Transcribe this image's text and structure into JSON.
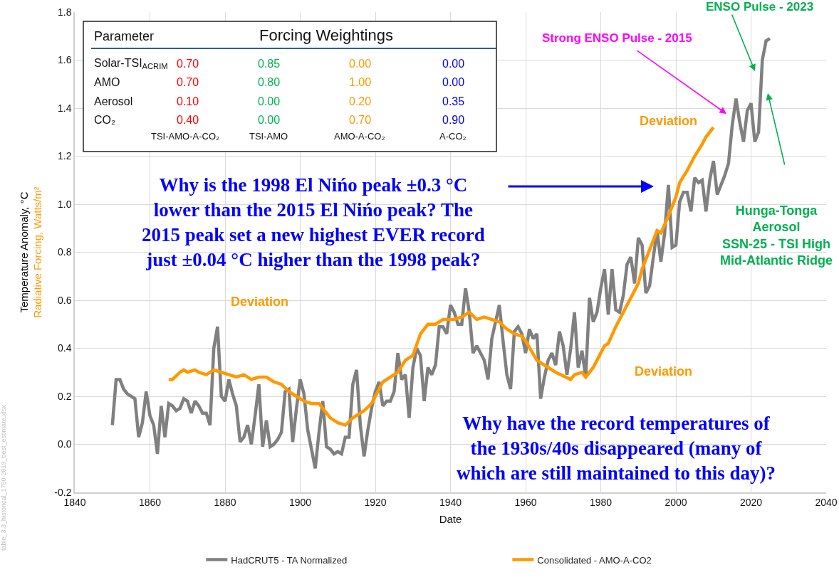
{
  "chart_data": {
    "type": "line",
    "xlabel": "Date",
    "ylabel": "Temperature Anomaly, °C\nRadiative Forcing, Watts/m²",
    "xlim": [
      1840,
      2040
    ],
    "xticks": [
      1840,
      1860,
      1880,
      1900,
      1920,
      1940,
      1960,
      1980,
      2000,
      2020,
      2040
    ],
    "ylim": [
      -0.2,
      1.8
    ],
    "yticks": [
      -0.2,
      {
        "value": 0,
        "label": "0.0"
      },
      0.2,
      0.4,
      0.6,
      0.8,
      {
        "value": 1,
        "label": "1.0"
      },
      1.2,
      1.4,
      1.6,
      1.8
    ],
    "grid": true,
    "legend": "bottom",
    "marker": "none",
    "line_style": "solid",
    "series": [
      {
        "name": "HadCRUT5 - TA Normalized",
        "color": "#808080",
        "x": [
          1850,
          1851,
          1852,
          1853,
          1854,
          1855,
          1856,
          1857,
          1858,
          1859,
          1860,
          1861,
          1862,
          1863,
          1864,
          1865,
          1866,
          1867,
          1868,
          1869,
          1870,
          1871,
          1872,
          1873,
          1874,
          1875,
          1876,
          1877,
          1878,
          1879,
          1880,
          1881,
          1882,
          1883,
          1884,
          1885,
          1886,
          1887,
          1888,
          1889,
          1890,
          1891,
          1892,
          1893,
          1894,
          1895,
          1896,
          1897,
          1898,
          1899,
          1900,
          1901,
          1902,
          1903,
          1904,
          1905,
          1906,
          1907,
          1908,
          1909,
          1910,
          1911,
          1912,
          1913,
          1914,
          1915,
          1916,
          1917,
          1918,
          1919,
          1920,
          1921,
          1922,
          1923,
          1924,
          1925,
          1926,
          1927,
          1928,
          1929,
          1930,
          1931,
          1932,
          1933,
          1934,
          1935,
          1936,
          1937,
          1938,
          1939,
          1940,
          1941,
          1942,
          1943,
          1944,
          1945,
          1946,
          1947,
          1948,
          1949,
          1950,
          1951,
          1952,
          1953,
          1954,
          1955,
          1956,
          1957,
          1958,
          1959,
          1960,
          1961,
          1962,
          1963,
          1964,
          1965,
          1966,
          1967,
          1968,
          1969,
          1970,
          1971,
          1972,
          1973,
          1974,
          1975,
          1976,
          1977,
          1978,
          1979,
          1980,
          1981,
          1982,
          1983,
          1984,
          1985,
          1986,
          1987,
          1988,
          1989,
          1990,
          1991,
          1992,
          1993,
          1994,
          1995,
          1996,
          1997,
          1998,
          1999,
          2000,
          2001,
          2002,
          2003,
          2004,
          2005,
          2006,
          2007,
          2008,
          2009,
          2010,
          2011,
          2012,
          2013,
          2014,
          2015,
          2016,
          2017,
          2018,
          2019,
          2020,
          2021,
          2022,
          2023,
          2024,
          2025
        ],
        "values": [
          0.08,
          0.27,
          0.27,
          0.23,
          0.21,
          0.2,
          0.19,
          0.03,
          0.09,
          0.22,
          0.12,
          0.08,
          -0.04,
          0.16,
          0.03,
          0.17,
          0.16,
          0.14,
          0.15,
          0.19,
          0.18,
          0.13,
          0.18,
          0.16,
          0.13,
          0.13,
          0.08,
          0.4,
          0.49,
          0.2,
          0.18,
          0.27,
          0.21,
          0.16,
          0.01,
          0.03,
          0.08,
          0.0,
          0.12,
          0.25,
          -0.01,
          0.1,
          -0.01,
          0.0,
          0.02,
          0.05,
          0.22,
          0.23,
          0.01,
          0.15,
          0.27,
          0.21,
          0.06,
          -0.02,
          -0.1,
          0.05,
          0.18,
          -0.01,
          -0.02,
          -0.04,
          -0.03,
          -0.04,
          0.03,
          0.03,
          0.25,
          0.31,
          0.08,
          -0.05,
          0.06,
          0.15,
          0.22,
          0.26,
          0.16,
          0.18,
          0.18,
          0.22,
          0.38,
          0.27,
          0.29,
          0.11,
          0.32,
          0.4,
          0.37,
          0.18,
          0.32,
          0.29,
          0.33,
          0.49,
          0.49,
          0.46,
          0.58,
          0.55,
          0.5,
          0.5,
          0.65,
          0.55,
          0.38,
          0.41,
          0.38,
          0.35,
          0.27,
          0.44,
          0.51,
          0.58,
          0.43,
          0.29,
          0.23,
          0.47,
          0.49,
          0.46,
          0.38,
          0.48,
          0.44,
          0.46,
          0.19,
          0.28,
          0.35,
          0.38,
          0.33,
          0.47,
          0.41,
          0.29,
          0.4,
          0.55,
          0.32,
          0.39,
          0.28,
          0.61,
          0.51,
          0.55,
          0.65,
          0.73,
          0.54,
          0.73,
          0.56,
          0.55,
          0.62,
          0.75,
          0.78,
          0.67,
          0.86,
          0.83,
          0.63,
          0.66,
          0.78,
          0.89,
          0.76,
          0.88,
          1.08,
          0.82,
          0.83,
          1.01,
          1.05,
          1.05,
          0.97,
          1.11,
          1.09,
          1.1,
          0.97,
          1.1,
          1.18,
          1.04,
          1.08,
          1.12,
          1.17,
          1.33,
          1.44,
          1.34,
          1.26,
          1.39,
          1.42,
          1.26,
          1.3,
          1.6,
          1.68,
          1.69
        ]
      },
      {
        "name": "Consolidated - AMO-A-CO2",
        "color": "#ff9900",
        "x": [
          1865,
          1866,
          1868,
          1869,
          1870,
          1872,
          1873,
          1875,
          1877,
          1879,
          1881,
          1883,
          1885,
          1887,
          1889,
          1891,
          1893,
          1895,
          1897,
          1899,
          1901,
          1903,
          1905,
          1907,
          1908,
          1910,
          1912,
          1914,
          1915,
          1917,
          1919,
          1922,
          1924,
          1926,
          1928,
          1930,
          1932,
          1934,
          1936,
          1938,
          1941,
          1943,
          1945,
          1947,
          1949,
          1951,
          1953,
          1955,
          1957,
          1959,
          1960,
          1963,
          1966,
          1968,
          1972,
          1973,
          1975,
          1976,
          1978,
          1979,
          1981,
          1982,
          1984,
          1987,
          1990,
          1991,
          1993,
          1995,
          1996,
          1998,
          2000,
          2001,
          2003,
          2005,
          2007,
          2008,
          2010
        ],
        "values": [
          0.27,
          0.27,
          0.3,
          0.31,
          0.3,
          0.31,
          0.3,
          0.29,
          0.31,
          0.3,
          0.29,
          0.28,
          0.29,
          0.27,
          0.28,
          0.28,
          0.26,
          0.25,
          0.22,
          0.2,
          0.18,
          0.17,
          0.17,
          0.13,
          0.11,
          0.09,
          0.08,
          0.11,
          0.12,
          0.14,
          0.17,
          0.26,
          0.28,
          0.3,
          0.35,
          0.37,
          0.46,
          0.5,
          0.5,
          0.52,
          0.52,
          0.53,
          0.55,
          0.52,
          0.53,
          0.52,
          0.51,
          0.48,
          0.46,
          0.45,
          0.43,
          0.35,
          0.32,
          0.3,
          0.27,
          0.29,
          0.3,
          0.28,
          0.32,
          0.35,
          0.41,
          0.42,
          0.49,
          0.58,
          0.67,
          0.73,
          0.81,
          0.89,
          0.88,
          0.95,
          1.03,
          1.09,
          1.14,
          1.2,
          1.25,
          1.28,
          1.32
        ]
      }
    ],
    "annotations": [
      "Parameter",
      "Forcing Weightings",
      "Solar-TSI$_{ACRIM}$",
      "0.70",
      "0.85",
      "0.00",
      "0.00",
      "AMO",
      "0.70",
      "0.80",
      "1.00",
      "0.00",
      "Aerosol",
      "0.10",
      "0.00",
      "0.20",
      "0.35",
      "CO₂",
      "0.40",
      "0.00",
      "0.70",
      "0.90",
      "TSI-AMO-A-CO₂",
      "TSI-AMO",
      "AMO-A-CO₂",
      "A-CO₂",
      "Why is the 1998 El Nińo peak ±0.3 °C\nlower than the 2015 El Nińo peak? The\n2015 peak set a new highest EVER record\njust ±0.04 °C higher than the 1998 peak?",
      "Why have the record temperatures of\nthe 1930s/40s disappeared (many of\nwhich are still maintained to this day)?",
      "Deviation",
      "Deviation",
      "Deviation",
      "Strong ENSO Pulse - 2015",
      "ENSO Pulse - 2023",
      "Hunga-Tonga\nAerosol\nSSN-25 - TSI High\nMid-Atlantic Ridge",
      "table_3.3_historical_1750-2019_best_estimate.xlsx"
    ]
  }
}
